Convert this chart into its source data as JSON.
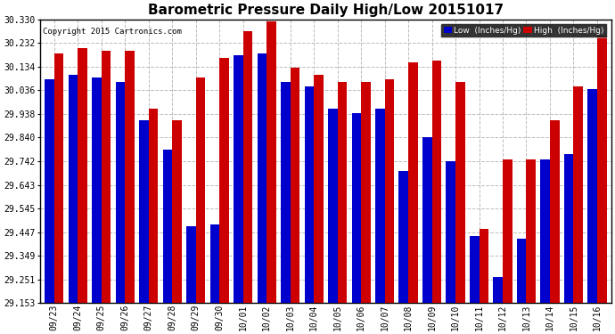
{
  "title": "Barometric Pressure Daily High/Low 20151017",
  "copyright": "Copyright 2015 Cartronics.com",
  "legend_low": "Low  (Inches/Hg)",
  "legend_high": "High  (Inches/Hg)",
  "dates": [
    "09/23",
    "09/24",
    "09/25",
    "09/26",
    "09/27",
    "09/28",
    "09/29",
    "09/30",
    "10/01",
    "10/02",
    "10/03",
    "10/04",
    "10/05",
    "10/06",
    "10/07",
    "10/08",
    "10/09",
    "10/10",
    "10/11",
    "10/12",
    "10/13",
    "10/14",
    "10/15",
    "10/16"
  ],
  "low_values": [
    30.08,
    30.1,
    30.09,
    30.07,
    29.91,
    29.79,
    29.47,
    29.48,
    30.18,
    30.19,
    30.07,
    30.05,
    29.96,
    29.94,
    29.96,
    29.7,
    29.84,
    29.74,
    29.43,
    29.26,
    29.42,
    29.75,
    29.77,
    30.04
  ],
  "high_values": [
    30.19,
    30.21,
    30.2,
    30.2,
    29.96,
    29.91,
    30.09,
    30.17,
    30.28,
    30.32,
    30.13,
    30.1,
    30.07,
    30.07,
    30.08,
    30.15,
    30.16,
    30.07,
    29.46,
    29.75,
    29.75,
    29.91,
    30.05,
    30.26
  ],
  "ylim_min": 29.153,
  "ylim_max": 30.33,
  "yticks": [
    29.153,
    29.251,
    29.349,
    29.447,
    29.545,
    29.643,
    29.742,
    29.84,
    29.938,
    30.036,
    30.134,
    30.232,
    30.33
  ],
  "bar_color_low": "#0000cc",
  "bar_color_high": "#cc0000",
  "bg_color": "#ffffff",
  "grid_color": "#bbbbbb",
  "title_fontsize": 11,
  "tick_fontsize": 7,
  "bar_width": 0.4,
  "figwidth": 6.9,
  "figheight": 3.75,
  "dpi": 100
}
